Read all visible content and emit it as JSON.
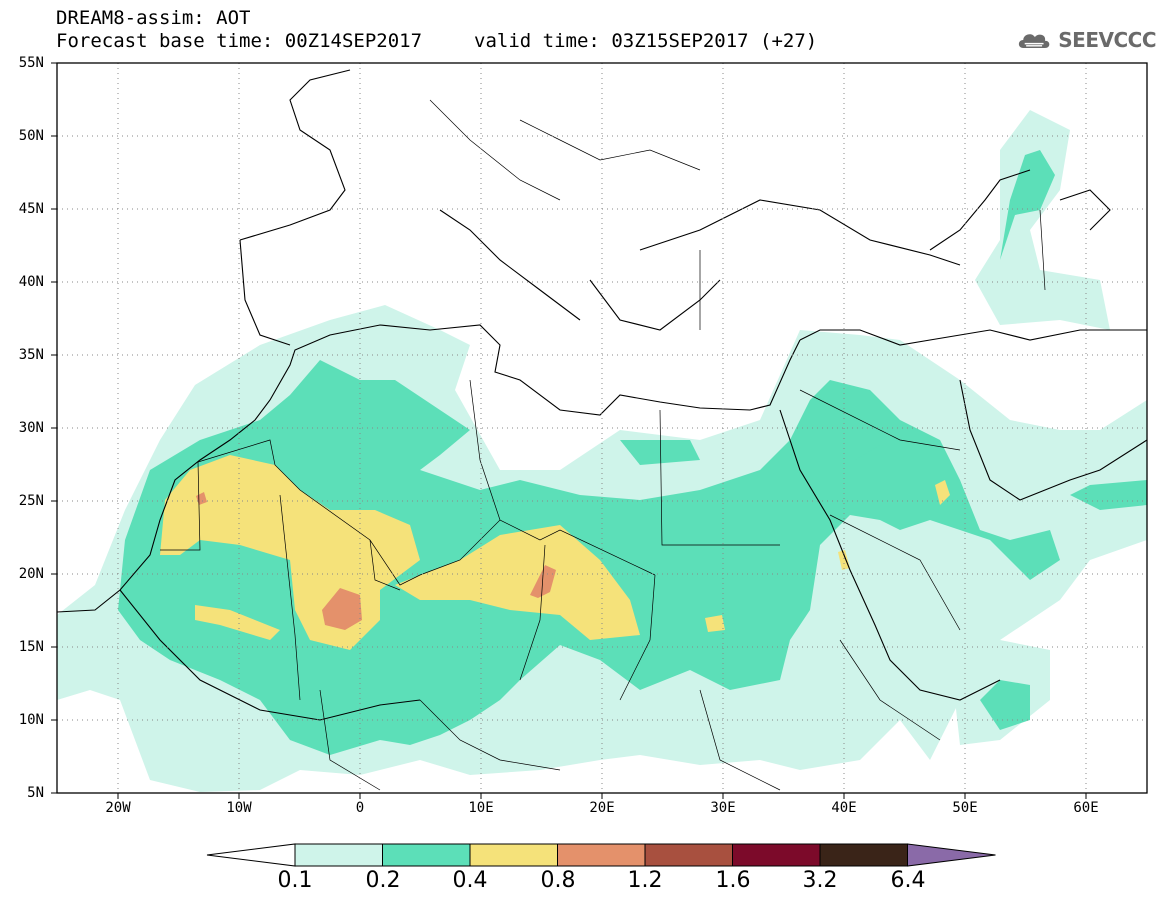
{
  "header": {
    "title_line1": "DREAM8-assim: AOT",
    "forecast_base": "Forecast base time: 00Z14SEP2017",
    "valid_time": "valid time: 03Z15SEP2017 (+27)"
  },
  "logo": {
    "text": "SEEVCCC",
    "icon": "cloud-logo-icon"
  },
  "map": {
    "lat_labels": [
      "55N",
      "50N",
      "45N",
      "40N",
      "35N",
      "30N",
      "25N",
      "20N",
      "15N",
      "10N",
      "5N"
    ],
    "lon_labels": [
      "20W",
      "10W",
      "0",
      "10E",
      "20E",
      "30E",
      "40E",
      "50E",
      "60E"
    ],
    "lon_range": [
      -25,
      65
    ],
    "lat_range": [
      5,
      55
    ]
  },
  "colorbar": {
    "labels": [
      "0.1",
      "0.2",
      "0.4",
      "0.8",
      "1.2",
      "1.6",
      "3.2",
      "6.4"
    ],
    "colors": [
      "#ffffff",
      "#cff4ea",
      "#5cdfb8",
      "#f5e27a",
      "#e4916b",
      "#a8503f",
      "#7c0a2a",
      "#3a2418",
      "#8a6aa8"
    ]
  }
}
